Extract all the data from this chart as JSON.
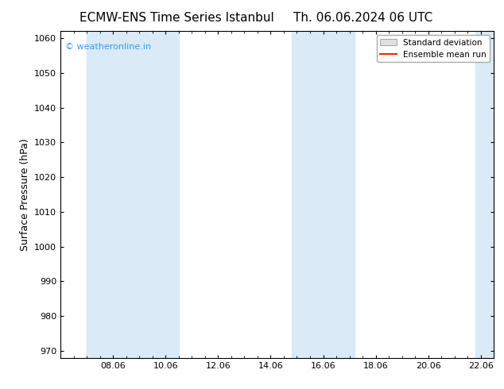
{
  "title_left": "ECMW-ENS Time Series Istanbul",
  "title_right": "Th. 06.06.2024 06 UTC",
  "ylabel": "Surface Pressure (hPa)",
  "xlabel": "",
  "xlim": [
    6.0,
    22.5
  ],
  "ylim": [
    968,
    1062
  ],
  "yticks": [
    970,
    980,
    990,
    1000,
    1010,
    1020,
    1030,
    1040,
    1050,
    1060
  ],
  "xticks": [
    8.0,
    10.0,
    12.0,
    14.0,
    16.0,
    18.0,
    20.0,
    22.0
  ],
  "xticklabels": [
    "08.06",
    "10.06",
    "12.06",
    "14.06",
    "16.06",
    "18.06",
    "20.06",
    "22.06"
  ],
  "shaded_bands": [
    {
      "x_start": 7.0,
      "x_end": 9.0,
      "color": "#daeaf6"
    },
    {
      "x_start": 9.0,
      "x_end": 10.5,
      "color": "#daeaf6"
    },
    {
      "x_start": 14.8,
      "x_end": 16.2,
      "color": "#daeaf6"
    },
    {
      "x_start": 16.2,
      "x_end": 17.2,
      "color": "#daeaf6"
    },
    {
      "x_start": 21.8,
      "x_end": 22.5,
      "color": "#daeaf6"
    }
  ],
  "watermark_text": "© weatheronline.in",
  "watermark_color": "#3399ff",
  "legend_mean_color": "#ff2200",
  "background_color": "#ffffff",
  "title_fontsize": 11,
  "tick_fontsize": 8,
  "ylabel_fontsize": 9
}
